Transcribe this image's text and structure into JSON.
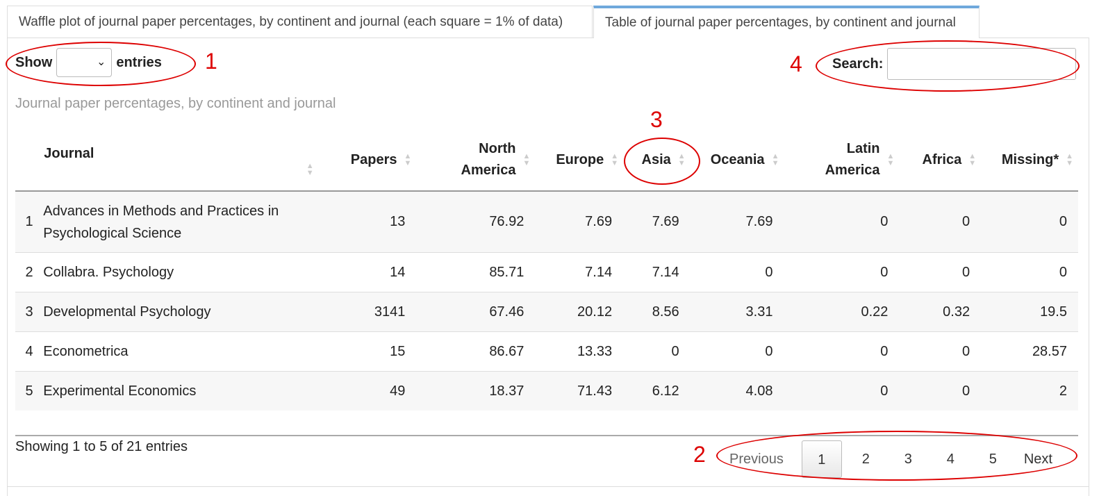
{
  "tabs": [
    "Waffle plot of journal paper percentages, by continent and journal (each square = 1% of data)",
    "Table of journal paper percentages, by continent and journal"
  ],
  "length": {
    "show_label": "Show",
    "entries_label": "entries",
    "selected": ""
  },
  "search": {
    "label": "Search:",
    "value": ""
  },
  "caption": "Journal paper percentages, by continent and journal",
  "columns": [
    {
      "label": "",
      "align": "left"
    },
    {
      "label": "Journal",
      "align": "left"
    },
    {
      "label": "Papers",
      "align": "right"
    },
    {
      "label": "North America",
      "align": "right"
    },
    {
      "label": "Europe",
      "align": "right"
    },
    {
      "label": "Asia",
      "align": "right"
    },
    {
      "label": "Oceania",
      "align": "right"
    },
    {
      "label": "Latin America",
      "align": "right"
    },
    {
      "label": "Africa",
      "align": "right"
    },
    {
      "label": "Missing*",
      "align": "right"
    }
  ],
  "rows": [
    [
      "1",
      "Advances in Methods and Practices in Psychological Science",
      "13",
      "76.92",
      "7.69",
      "7.69",
      "7.69",
      "0",
      "0",
      "0"
    ],
    [
      "2",
      "Collabra. Psychology",
      "14",
      "85.71",
      "7.14",
      "7.14",
      "0",
      "0",
      "0",
      "0"
    ],
    [
      "3",
      "Developmental Psychology",
      "3141",
      "67.46",
      "20.12",
      "8.56",
      "3.31",
      "0.22",
      "0.32",
      "19.5"
    ],
    [
      "4",
      "Econometrica",
      "15",
      "86.67",
      "13.33",
      "0",
      "0",
      "0",
      "0",
      "28.57"
    ],
    [
      "5",
      "Experimental Economics",
      "49",
      "18.37",
      "71.43",
      "6.12",
      "4.08",
      "0",
      "0",
      "2"
    ]
  ],
  "info": "Showing 1 to 5 of 21 entries",
  "pagination": {
    "previous": "Previous",
    "pages": [
      "1",
      "2",
      "3",
      "4",
      "5"
    ],
    "current": "1",
    "next": "Next"
  },
  "annotations": [
    "1",
    "2",
    "3",
    "4"
  ],
  "icons": {
    "sort": "sort-both-icon",
    "select": "chevron-down-icon"
  },
  "colors": {
    "annotation": "#dd0000",
    "tab_accent": "#6fa8dc"
  }
}
